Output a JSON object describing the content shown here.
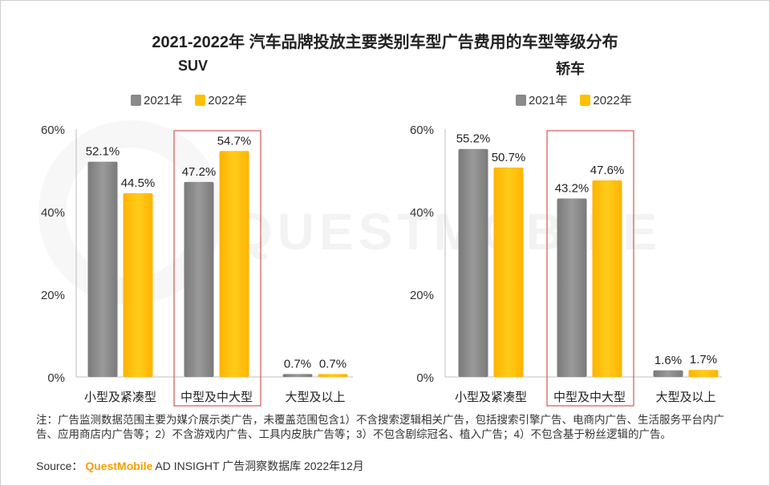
{
  "title": "2021-2022年 汽车品牌投放主要类别车型广告费用的车型等级分布",
  "watermark": "QUESTMOBILE",
  "colors": {
    "y2021": "#8a8a8a",
    "y2022": "#ffc000",
    "highlight": "#d9534f",
    "axis": "#bfbfbf"
  },
  "chart_data": [
    {
      "type": "bar",
      "title": "SUV",
      "categories": [
        "小型及紧凑型",
        "中型及中大型",
        "大型及以上"
      ],
      "series": [
        {
          "name": "2021年",
          "values": [
            52.1,
            47.2,
            0.7
          ],
          "labels": [
            "52.1%",
            "47.2%",
            "0.7%"
          ]
        },
        {
          "name": "2022年",
          "values": [
            44.5,
            54.7,
            0.7
          ],
          "labels": [
            "44.5%",
            "54.7%",
            "0.7%"
          ]
        }
      ],
      "ylim": [
        0,
        60
      ],
      "yticks": [
        "0%",
        "20%",
        "40%",
        "60%"
      ],
      "highlight_category": "中型及中大型",
      "legend": "top"
    },
    {
      "type": "bar",
      "title": "轿车",
      "categories": [
        "小型及紧凑型",
        "中型及中大型",
        "大型及以上"
      ],
      "series": [
        {
          "name": "2021年",
          "values": [
            55.2,
            43.2,
            1.6
          ],
          "labels": [
            "55.2%",
            "43.2%",
            "1.6%"
          ]
        },
        {
          "name": "2022年",
          "values": [
            50.7,
            47.6,
            1.7
          ],
          "labels": [
            "50.7%",
            "47.6%",
            "1.7%"
          ]
        }
      ],
      "ylim": [
        0,
        60
      ],
      "yticks": [
        "0%",
        "20%",
        "40%",
        "60%"
      ],
      "highlight_category": "中型及中大型",
      "legend": "top"
    }
  ],
  "notes": "注：广告监测数据范围主要为媒介展示类广告，未覆盖范围包含1）不含搜索逻辑相关广告，包括搜索引擎广告、电商内广告、生活服务平台内广告、应用商店内广告等；2）不含游戏内广告、工具内皮肤广告等；3）不包含剧综冠名、植入广告；4）不包含基于粉丝逻辑的广告。",
  "source": {
    "label": "Source：",
    "brand": "QuestMobile",
    "text": "AD INSIGHT 广告洞察数据库 2022年12月"
  }
}
